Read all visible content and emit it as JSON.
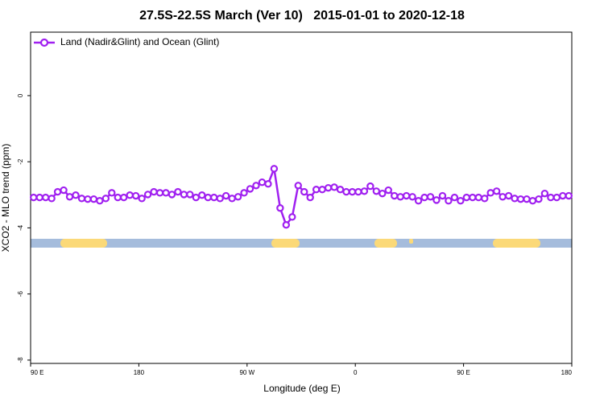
{
  "chart_data": {
    "type": "line",
    "title": "27.5S-22.5S March (Ver 10)   2015-01-01 to 2020-12-18",
    "xlabel": "Longitude (deg E)",
    "ylabel": "XCO2 - MLO trend (ppm)",
    "xlim": [
      90,
      540
    ],
    "ylim": [
      -8.1,
      1.92
    ],
    "xticks": [
      {
        "value": 90,
        "label": "90 E"
      },
      180,
      {
        "value": 270,
        "label": "90 W"
      },
      {
        "value": 360,
        "label": "0"
      },
      {
        "value": 450,
        "label": "90 E"
      },
      {
        "value": 540,
        "label": "180"
      }
    ],
    "yticks": [
      0,
      -2,
      -4,
      -6,
      -8
    ],
    "legend": "top-left",
    "x": [
      92.5,
      97.5,
      102.5,
      107.5,
      112.5,
      117.5,
      122.5,
      127.5,
      132.5,
      137.5,
      142.5,
      147.5,
      152.5,
      157.5,
      162.5,
      167.5,
      172.5,
      177.5,
      182.5,
      187.5,
      192.5,
      197.5,
      202.5,
      207.5,
      212.5,
      217.5,
      222.5,
      227.5,
      232.5,
      237.5,
      242.5,
      247.5,
      252.5,
      257.5,
      262.5,
      267.5,
      272.5,
      277.5,
      282.5,
      287.5,
      292.5,
      297.5,
      302.5,
      307.5,
      312.5,
      317.5,
      322.5,
      327.5,
      332.5,
      337.5,
      342.5,
      347.5,
      352.5,
      357.5,
      362.5,
      367.5,
      372.5,
      377.5,
      382.5,
      387.5,
      392.5,
      397.5,
      402.5,
      407.5,
      412.5,
      417.5,
      422.5,
      427.5,
      432.5,
      437.5,
      442.5,
      447.5,
      452.5,
      457.5,
      462.5,
      467.5,
      472.5,
      477.5,
      482.5,
      487.5,
      492.5,
      497.5,
      502.5,
      507.5,
      512.5,
      517.5,
      522.5,
      527.5,
      532.5,
      537.5
    ],
    "series": [
      {
        "name": "Land (Nadir&Glint) and Ocean (Glint)",
        "color": "#a020f0",
        "values": [
          -3.08,
          -3.08,
          -3.08,
          -3.11,
          -2.91,
          -2.86,
          -3.06,
          -3.01,
          -3.11,
          -3.13,
          -3.13,
          -3.18,
          -3.11,
          -2.94,
          -3.08,
          -3.08,
          -3.01,
          -3.03,
          -3.11,
          -2.99,
          -2.91,
          -2.94,
          -2.94,
          -2.99,
          -2.91,
          -2.99,
          -2.99,
          -3.08,
          -3.01,
          -3.08,
          -3.08,
          -3.11,
          -3.03,
          -3.11,
          -3.06,
          -2.94,
          -2.82,
          -2.72,
          -2.62,
          -2.67,
          -2.21,
          -3.4,
          -3.91,
          -3.67,
          -2.72,
          -2.91,
          -3.08,
          -2.84,
          -2.84,
          -2.79,
          -2.77,
          -2.84,
          -2.91,
          -2.91,
          -2.91,
          -2.89,
          -2.74,
          -2.89,
          -2.96,
          -2.86,
          -3.03,
          -3.06,
          -3.03,
          -3.06,
          -3.18,
          -3.08,
          -3.06,
          -3.16,
          -3.03,
          -3.18,
          -3.08,
          -3.18,
          -3.08,
          -3.08,
          -3.08,
          -3.11,
          -2.94,
          -2.89,
          -3.06,
          -3.03,
          -3.11,
          -3.13,
          -3.13,
          -3.18,
          -3.13,
          -2.96,
          -3.08,
          -3.08,
          -3.03,
          -3.03
        ]
      }
    ]
  }
}
